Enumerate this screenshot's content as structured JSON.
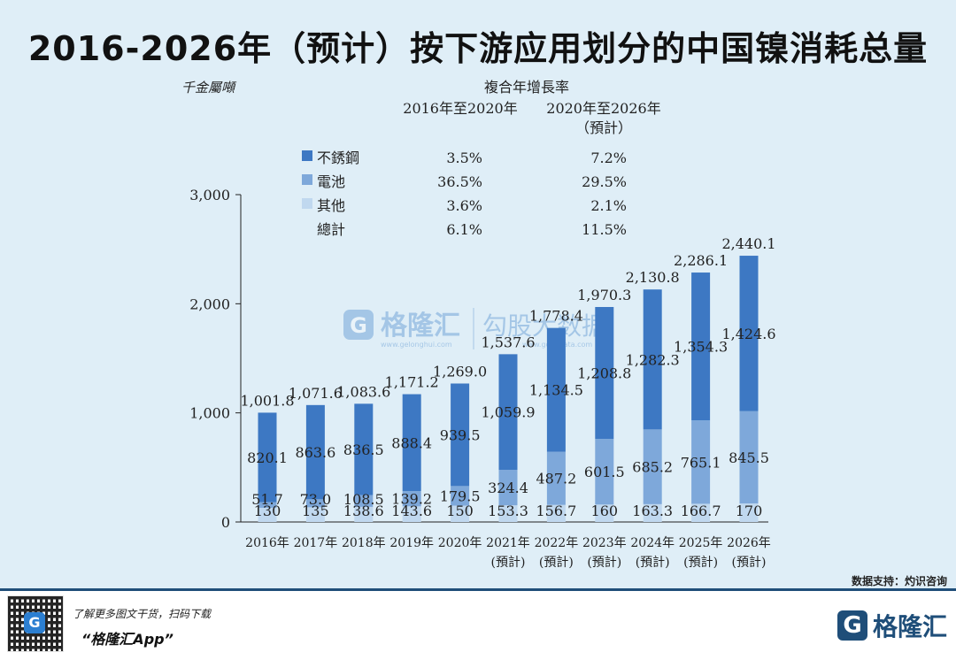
{
  "title": "2016-2026年（预计）按下游应用划分的中国镍消耗总量",
  "unit_label": "千金屬噸",
  "cagr": {
    "header": "複合年增長率",
    "col1": "2016年至2020年",
    "col2": "2020年至2026年",
    "col2_sub": "（預計）",
    "rows": [
      {
        "label": "不銹鋼",
        "v1": "3.5%",
        "v2": "7.2%"
      },
      {
        "label": "電池",
        "v1": "36.5%",
        "v2": "29.5%"
      },
      {
        "label": "其他",
        "v1": "3.6%",
        "v2": "2.1%"
      },
      {
        "label": "總計",
        "v1": "6.1%",
        "v2": "11.5%"
      }
    ]
  },
  "watermark": {
    "brand": "格隆汇",
    "brand_url": "www.gelonghui.com",
    "sub": "勾股大数据",
    "sub_url": "www.gogudata.com"
  },
  "source": "数据支持：灼识咨询",
  "footer": {
    "note": "了解更多图文干货，扫码下载",
    "app": "“格隆汇App”",
    "logo_text": "格隆汇",
    "logo_glyph": "G"
  },
  "colors": {
    "stainless": "#3d78c3",
    "battery": "#7ea8da",
    "other": "#c0d8ef",
    "background": "#dfeef7"
  },
  "chart_data": {
    "type": "bar",
    "stacked": true,
    "categories": [
      "2016年",
      "2017年",
      "2018年",
      "2019年",
      "2020年",
      "2021年",
      "2022年",
      "2023年",
      "2024年",
      "2025年",
      "2026年"
    ],
    "category_sub": [
      "",
      "",
      "",
      "",
      "",
      "(預計)",
      "(預計)",
      "(預計)",
      "(預計)",
      "(預計)",
      "(預計)"
    ],
    "series": [
      {
        "name": "其他",
        "values": [
          130,
          135,
          138.6,
          143.6,
          150,
          153.3,
          156.7,
          160,
          163.3,
          166.7,
          170
        ],
        "labels": [
          "130",
          "135",
          "138.6",
          "143.6",
          "150",
          "153.3",
          "156.7",
          "160",
          "163.3",
          "166.7",
          "170"
        ]
      },
      {
        "name": "電池",
        "values": [
          51.7,
          73.0,
          108.5,
          139.2,
          179.5,
          324.4,
          487.2,
          601.5,
          685.2,
          765.1,
          845.5
        ],
        "labels": [
          "51.7",
          "73.0",
          "108.5",
          "139.2",
          "179.5",
          "324.4",
          "487.2",
          "601.5",
          "685.2",
          "765.1",
          "845.5"
        ]
      },
      {
        "name": "不銹鋼",
        "values": [
          820.1,
          863.6,
          836.5,
          888.4,
          939.5,
          1059.9,
          1134.5,
          1208.8,
          1282.3,
          1354.3,
          1424.6
        ],
        "labels": [
          "820.1",
          "863.6",
          "836.5",
          "888.4",
          "939.5",
          "1,059.9",
          "1,134.5",
          "1,208.8",
          "1,282.3",
          "1,354.3",
          "1,424.6"
        ]
      }
    ],
    "totals": [
      1001.8,
      1071.6,
      1083.6,
      1171.2,
      1269.0,
      1537.6,
      1778.4,
      1970.3,
      2130.8,
      2286.1,
      2440.1
    ],
    "total_labels": [
      "1,001.8",
      "1,071.6",
      "1,083.6",
      "1,171.2",
      "1,269.0",
      "1,537.6",
      "1,778.4",
      "1,970.3",
      "2,130.8",
      "2,286.1",
      "2,440.1"
    ],
    "yticks": [
      0,
      1000,
      2000,
      3000
    ],
    "ytick_labels": [
      "0",
      "1,000",
      "2,000",
      "3,000"
    ],
    "ylim": [
      0,
      3000
    ],
    "legend": "top-left",
    "grid": false
  }
}
